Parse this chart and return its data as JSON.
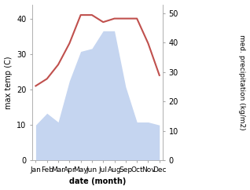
{
  "months": [
    "Jan",
    "Feb",
    "Mar",
    "Apr",
    "May",
    "Jun",
    "Jul",
    "Aug",
    "Sep",
    "Oct",
    "Nov",
    "Dec"
  ],
  "max_temp": [
    21,
    23,
    27,
    33,
    41,
    41,
    39,
    40,
    40,
    40,
    33,
    24
  ],
  "precipitation": [
    12,
    16,
    13,
    27,
    37,
    38,
    44,
    44,
    25,
    13,
    13,
    12
  ],
  "temp_color": "#c0504d",
  "precip_fill_color": "#c5d5f0",
  "temp_ylim": [
    0,
    44
  ],
  "precip_ylim": [
    0,
    53
  ],
  "temp_yticks": [
    0,
    10,
    20,
    30,
    40
  ],
  "precip_yticks": [
    0,
    10,
    20,
    30,
    40,
    50
  ],
  "ylabel_left": "max temp (C)",
  "ylabel_right": "med. precipitation (kg/m2)",
  "xlabel": "date (month)",
  "bg_color": "#ffffff",
  "spine_color": "#aaaaaa",
  "figsize": [
    3.18,
    2.42
  ],
  "dpi": 100
}
